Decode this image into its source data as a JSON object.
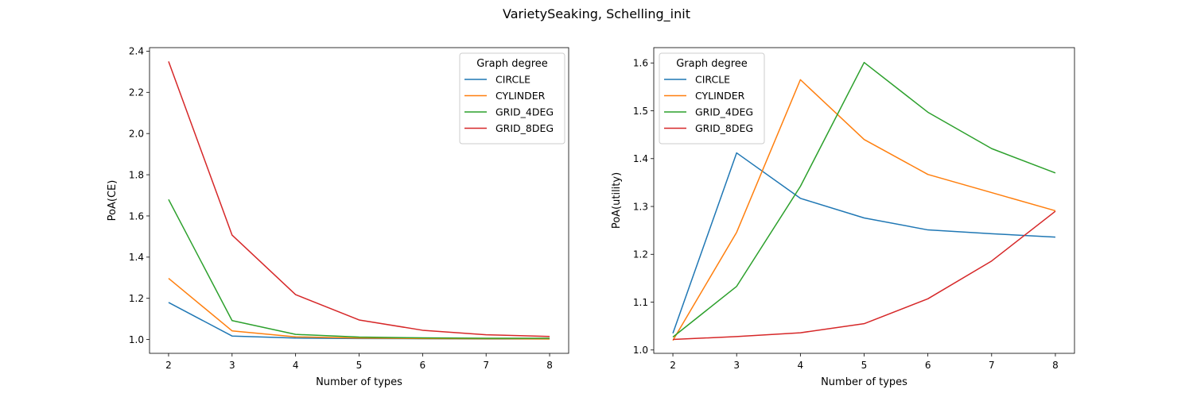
{
  "figure": {
    "suptitle": "VarietySeaking, Schelling_init"
  },
  "chart_data": [
    {
      "type": "line",
      "xlabel": "Number of types",
      "ylabel": "PoA(CE)",
      "x": [
        2,
        3,
        4,
        5,
        6,
        7,
        8
      ],
      "xlim": [
        1.7,
        8.3
      ],
      "ylim": [
        0.933,
        2.417
      ],
      "xticks": [
        "2",
        "3",
        "4",
        "5",
        "6",
        "7",
        "8"
      ],
      "yticks": [
        "1.0",
        "1.2",
        "1.4",
        "1.6",
        "1.8",
        "2.0",
        "2.2",
        "2.4"
      ],
      "legend": {
        "title": "Graph degree",
        "position": "top-right"
      },
      "series": [
        {
          "name": "CIRCLE",
          "color": "#1f77b4",
          "values": [
            1.18,
            1.017,
            1.007,
            1.005,
            1.004,
            1.003,
            1.003
          ]
        },
        {
          "name": "CYLINDER",
          "color": "#ff7f0e",
          "values": [
            1.297,
            1.042,
            1.013,
            1.007,
            1.005,
            1.004,
            1.003
          ]
        },
        {
          "name": "GRID_4DEG",
          "color": "#2ca02c",
          "values": [
            1.68,
            1.092,
            1.025,
            1.012,
            1.008,
            1.006,
            1.006
          ]
        },
        {
          "name": "GRID_8DEG",
          "color": "#d62728",
          "values": [
            2.35,
            1.507,
            1.218,
            1.095,
            1.045,
            1.023,
            1.015
          ]
        }
      ]
    },
    {
      "type": "line",
      "xlabel": "Number of types",
      "ylabel": "PoA(utility)",
      "x": [
        2,
        3,
        4,
        5,
        6,
        7,
        8
      ],
      "xlim": [
        1.7,
        8.3
      ],
      "ylim": [
        0.993,
        1.632
      ],
      "xticks": [
        "2",
        "3",
        "4",
        "5",
        "6",
        "7",
        "8"
      ],
      "yticks": [
        "1.0",
        "1.1",
        "1.2",
        "1.3",
        "1.4",
        "1.5",
        "1.6"
      ],
      "legend": {
        "title": "Graph degree",
        "position": "top-left"
      },
      "series": [
        {
          "name": "CIRCLE",
          "color": "#1f77b4",
          "values": [
            1.035,
            1.412,
            1.317,
            1.276,
            1.251,
            1.243,
            1.236
          ]
        },
        {
          "name": "CYLINDER",
          "color": "#ff7f0e",
          "values": [
            1.02,
            1.246,
            1.565,
            1.44,
            1.367,
            1.329,
            1.291
          ]
        },
        {
          "name": "GRID_4DEG",
          "color": "#2ca02c",
          "values": [
            1.027,
            1.133,
            1.342,
            1.601,
            1.497,
            1.421,
            1.37
          ]
        },
        {
          "name": "GRID_8DEG",
          "color": "#d62728",
          "values": [
            1.022,
            1.028,
            1.036,
            1.055,
            1.107,
            1.186,
            1.29
          ]
        }
      ]
    }
  ]
}
